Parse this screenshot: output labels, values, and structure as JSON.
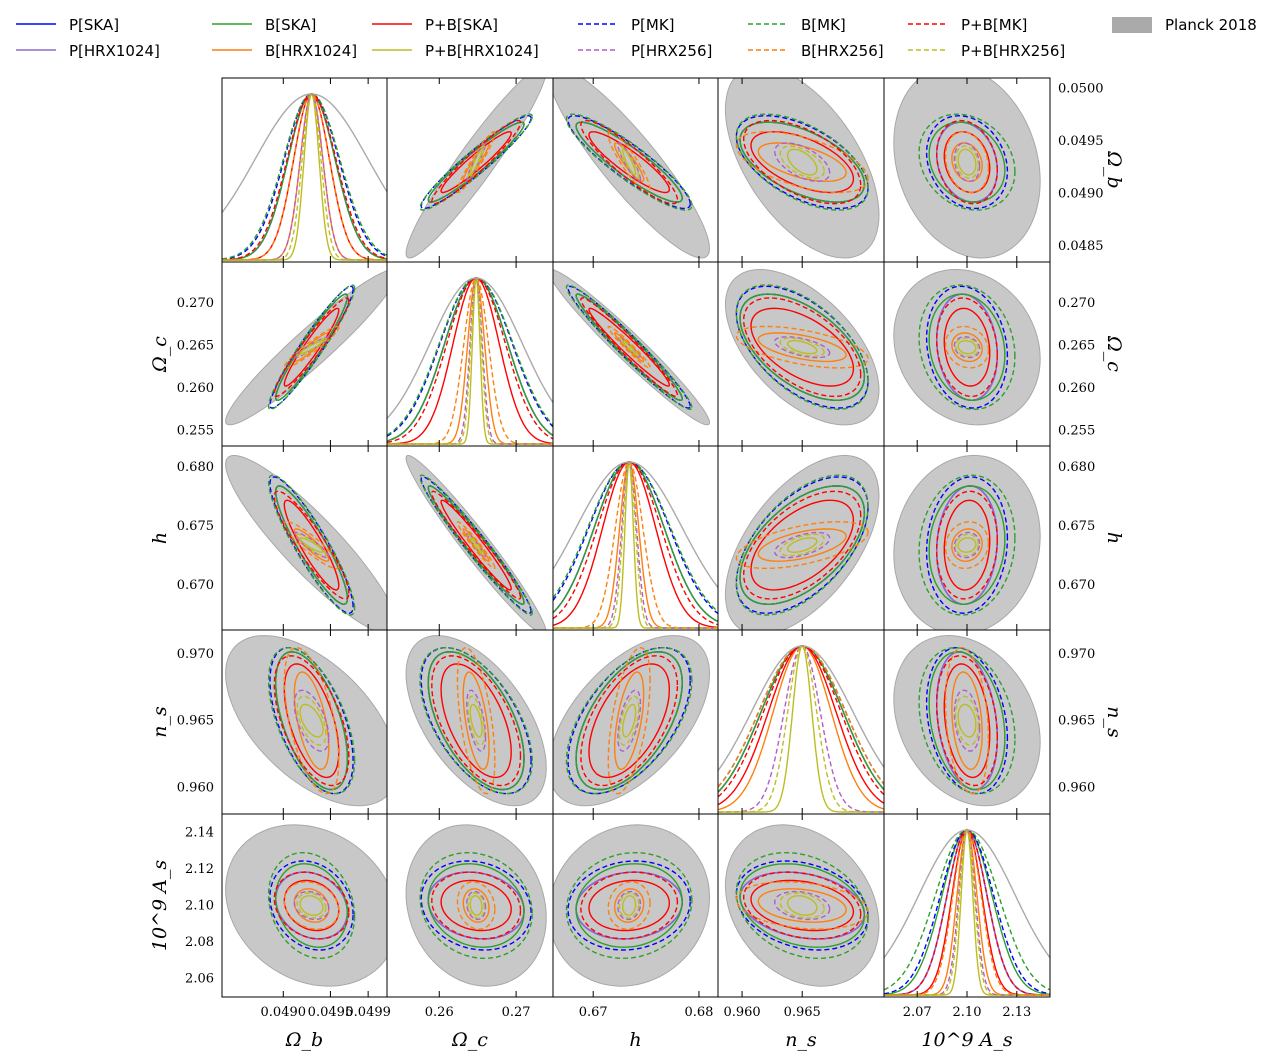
{
  "chart_data": {
    "type": "triangle",
    "title": "",
    "parameters": [
      {
        "key": "Ob",
        "label": "Ω_b",
        "center": 0.0493,
        "ticks": [
          "0.0490",
          "0.0495",
          "0.0499"
        ],
        "tick_values": [
          0.049,
          0.0495,
          0.0499
        ],
        "right_ticks": [
          "0.0500",
          "0.0495",
          "0.0490",
          "0.0485"
        ],
        "right_tick_values": [
          0.05,
          0.0495,
          0.049,
          0.0485
        ],
        "range": [
          0.04835,
          0.0501
        ]
      },
      {
        "key": "Oc",
        "label": "Ω_c",
        "center": 0.2648,
        "ticks": [
          "0.26",
          "0.27"
        ],
        "tick_values": [
          0.26,
          0.27
        ],
        "right_ticks": [
          "0.270",
          "0.265",
          "0.260",
          "0.255"
        ],
        "right_tick_values": [
          0.27,
          0.265,
          0.26,
          0.255
        ],
        "range": [
          0.2532,
          0.2748
        ]
      },
      {
        "key": "h",
        "label": "h",
        "center": 0.6734,
        "ticks": [
          "0.67",
          "0.68"
        ],
        "tick_values": [
          0.67,
          0.68
        ],
        "right_ticks": [
          "0.680",
          "0.675",
          "0.670"
        ],
        "right_tick_values": [
          0.68,
          0.675,
          0.67
        ],
        "range": [
          0.6662,
          0.6818
        ]
      },
      {
        "key": "ns",
        "label": "n_s",
        "center": 0.965,
        "ticks": [
          "0.960",
          "0.965"
        ],
        "tick_values": [
          0.96,
          0.965
        ],
        "right_ticks": [
          "0.970",
          "0.965",
          "0.960"
        ],
        "right_tick_values": [
          0.97,
          0.965,
          0.96
        ],
        "range": [
          0.958,
          0.9718
        ]
      },
      {
        "key": "As",
        "label": "10^9 A_s",
        "center": 2.1,
        "ticks": [
          "2.07",
          "2.10",
          "2.13"
        ],
        "tick_values": [
          2.07,
          2.1,
          2.13
        ],
        "left_ticks": [
          "2.14",
          "2.12",
          "2.10",
          "2.08",
          "2.06"
        ],
        "left_tick_values": [
          2.14,
          2.12,
          2.1,
          2.08,
          2.06
        ],
        "range": [
          2.05,
          2.15
        ]
      }
    ],
    "series": [
      {
        "name": "P[SKA]",
        "color": "#0000ff",
        "dash": "solid",
        "sigma": [
          0.00025,
          0.0041,
          0.0033,
          0.0034,
          0.012
        ]
      },
      {
        "name": "P[HRX1024]",
        "color": "#8e6bd0",
        "dash": "solid",
        "sigma": [
          0.00025,
          0.0041,
          0.0033,
          0.0034,
          0.012
        ]
      },
      {
        "name": "B[SKA]",
        "color": "#2ca02c",
        "dash": "solid",
        "sigma": [
          0.00025,
          0.0041,
          0.0033,
          0.0034,
          0.015
        ]
      },
      {
        "name": "B[HRX1024]",
        "color": "#ff7f0e",
        "dash": "solid",
        "sigma": [
          0.00012,
          0.0011,
          0.0009,
          0.0024,
          0.006
        ]
      },
      {
        "name": "P+B[SKA]",
        "color": "#ff0000",
        "dash": "solid",
        "sigma": [
          0.00019,
          0.003,
          0.0025,
          0.0028,
          0.009
        ]
      },
      {
        "name": "P+B[HRX1024]",
        "color": "#bcbd22",
        "dash": "solid",
        "sigma": [
          8e-05,
          0.0005,
          0.0004,
          0.0008,
          0.0035
        ]
      },
      {
        "name": "P[MK]",
        "color": "#0000ff",
        "dash": "dashed",
        "sigma": [
          0.00029,
          0.0047,
          0.0038,
          0.0036,
          0.016
        ]
      },
      {
        "name": "P[HRX256]",
        "color": "#b45cc8",
        "dash": "dashed",
        "sigma": [
          0.00012,
          0.0008,
          0.0007,
          0.0015,
          0.005
        ]
      },
      {
        "name": "B[MK]",
        "color": "#2ca02c",
        "dash": "dashed",
        "sigma": [
          0.0003,
          0.0048,
          0.0039,
          0.0036,
          0.019
        ]
      },
      {
        "name": "B[HRX256]",
        "color": "#ff7f0e",
        "dash": "dashed",
        "sigma": [
          0.00019,
          0.0016,
          0.0013,
          0.0036,
          0.0085
        ]
      },
      {
        "name": "P+B[MK]",
        "color": "#ff0000",
        "dash": "dashed",
        "sigma": [
          0.00026,
          0.0038,
          0.003,
          0.0032,
          0.012
        ]
      },
      {
        "name": "P+B[HRX256]",
        "color": "#bcbd22",
        "dash": "dashed",
        "sigma": [
          0.0001,
          0.0007,
          0.0006,
          0.0012,
          0.0045
        ]
      },
      {
        "name": "Planck 2018",
        "color": "#aaaaaa",
        "dash": "filled",
        "sigma": [
          0.0006,
          0.006,
          0.005,
          0.0042,
          0.029
        ]
      }
    ],
    "correlations": {
      "Ob-Oc": 0.95,
      "Ob-h": -0.9,
      "Ob-ns": -0.55,
      "Ob-As": -0.2,
      "Oc-h": -0.97,
      "Oc-ns": -0.55,
      "Oc-As": -0.15,
      "h-ns": 0.55,
      "h-As": 0.1,
      "ns-As": -0.25
    },
    "axis_labels": [
      "Ω_b",
      "Ω_c",
      "h",
      "n_s",
      "10^9 A_s"
    ],
    "legend_position": "top"
  }
}
